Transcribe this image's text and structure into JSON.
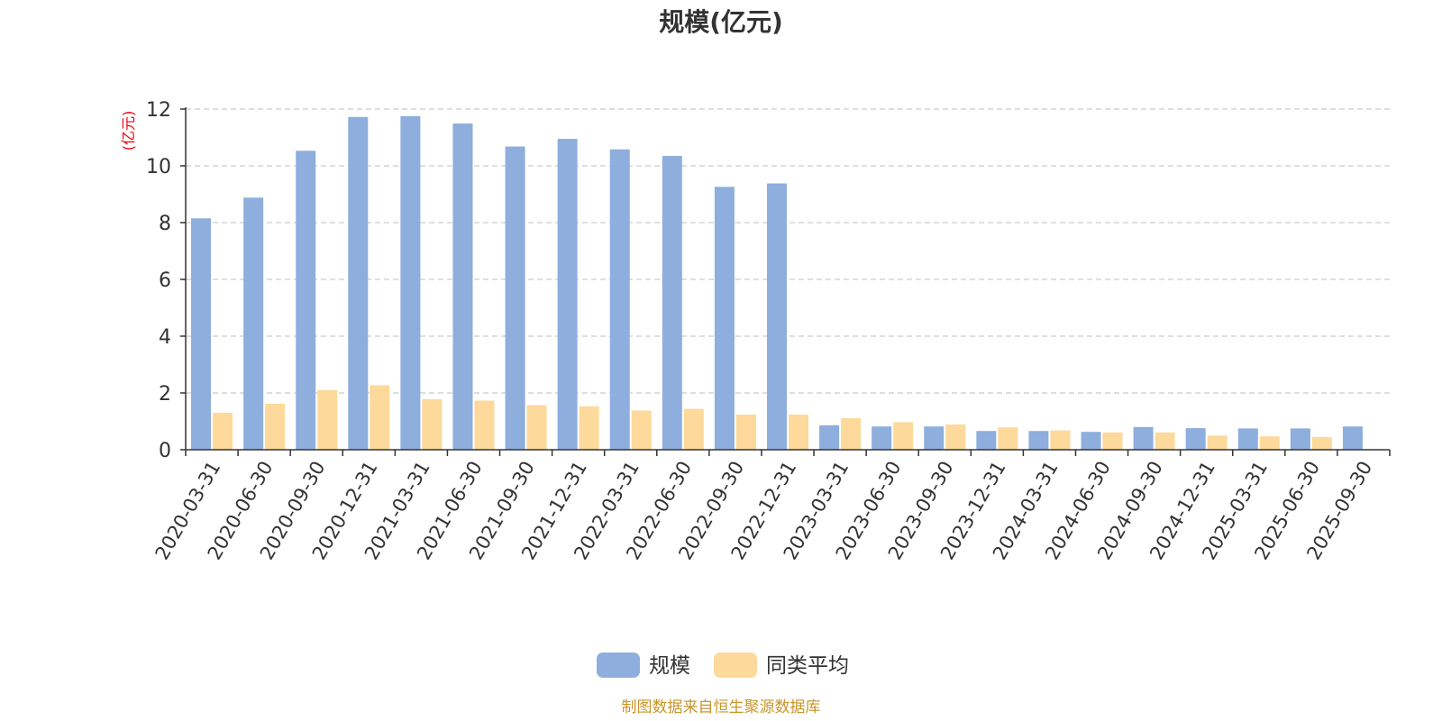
{
  "chart_data": {
    "type": "bar",
    "title": "规模(亿元)",
    "ylabel": "(亿元)",
    "xlabel": "",
    "ylim": [
      0,
      12
    ],
    "yticks": [
      "0",
      "2",
      "4",
      "6",
      "8",
      "10",
      "12"
    ],
    "grid": true,
    "legend_position": "bottom-center",
    "categories": [
      "2020-03-31",
      "2020-06-30",
      "2020-09-30",
      "2020-12-31",
      "2021-03-31",
      "2021-06-30",
      "2021-09-30",
      "2021-12-31",
      "2022-03-31",
      "2022-06-30",
      "2022-09-30",
      "2022-12-31",
      "2023-03-31",
      "2023-06-30",
      "2023-09-30",
      "2023-12-31",
      "2024-03-31",
      "2024-06-30",
      "2024-09-30",
      "2024-12-31",
      "2025-03-31",
      "2025-06-30",
      "2025-09-30"
    ],
    "series": [
      {
        "name": "规模",
        "color": "#8eaedd",
        "values": [
          8.15,
          8.88,
          10.53,
          11.72,
          11.75,
          11.49,
          10.68,
          10.95,
          10.58,
          10.35,
          9.26,
          9.38,
          0.86,
          0.82,
          0.82,
          0.66,
          0.66,
          0.63,
          0.8,
          0.76,
          0.75,
          0.75,
          0.82
        ]
      },
      {
        "name": "同类平均",
        "color": "#fdd99b",
        "values": [
          1.3,
          1.62,
          2.1,
          2.27,
          1.78,
          1.73,
          1.57,
          1.53,
          1.38,
          1.44,
          1.24,
          1.24,
          1.11,
          0.97,
          0.89,
          0.79,
          0.68,
          0.61,
          0.61,
          0.5,
          0.47,
          0.45,
          null
        ]
      }
    ],
    "source": "制图数据来自恒生聚源数据库"
  }
}
